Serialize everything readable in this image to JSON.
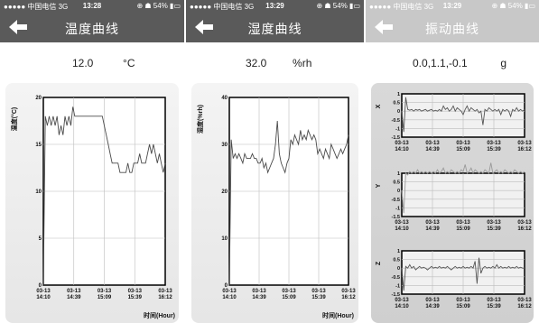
{
  "status_bar": {
    "carrier_signal": "●●●●● 中国电信  3G",
    "battery_temp": "⊕ ☗ 54% ▮▭",
    "battery_hum": "⊕ ☗ 54% ▮▭",
    "battery_vib": "⊕ ☗ 54% ▮▭",
    "time_temp": "13:28",
    "time_hum": "13:29",
    "time_vib": "13:29"
  },
  "screens": {
    "temperature": {
      "title": "温度曲线",
      "value": "12.0",
      "unit": "°C"
    },
    "humidity": {
      "title": "湿度曲线",
      "value": "32.0",
      "unit": "%rh"
    },
    "vibration": {
      "title": "振动曲线",
      "value": "0.0,1.1,-0.1",
      "unit": "g"
    }
  },
  "x_axis": {
    "dates": [
      "03-13",
      "03-13",
      "03-13",
      "03-13",
      "03-13"
    ],
    "times": [
      "14:10",
      "14:39",
      "15:09",
      "15:39",
      "16:12"
    ],
    "label": "时间(Hour)"
  },
  "chart_data": [
    {
      "type": "line",
      "ylabel": "温度(°C)",
      "ylim": [
        0,
        20
      ],
      "yticks": [
        "0",
        "5",
        "10",
        "15",
        "20"
      ],
      "x": [
        "14:10",
        "14:11",
        "14:12",
        "14:14",
        "14:16",
        "14:18",
        "14:20",
        "14:22",
        "14:24",
        "14:26",
        "14:28",
        "14:30",
        "14:32",
        "14:34",
        "14:36",
        "14:38",
        "14:40",
        "14:42",
        "14:44",
        "14:46",
        "14:48",
        "14:50",
        "14:52",
        "14:54",
        "14:56",
        "14:58",
        "15:00",
        "15:02",
        "15:04",
        "15:06",
        "15:08",
        "15:10",
        "15:12",
        "15:14",
        "15:16",
        "15:18",
        "15:20",
        "15:22",
        "15:24",
        "15:26",
        "15:28",
        "15:30",
        "15:32",
        "15:34",
        "15:36",
        "15:38",
        "15:40",
        "15:42",
        "15:44",
        "15:46",
        "15:48",
        "15:50",
        "15:52",
        "15:54",
        "15:56",
        "15:58",
        "16:00",
        "16:02",
        "16:04",
        "16:06",
        "16:08",
        "16:10",
        "16:12"
      ],
      "values": [
        0,
        18,
        17,
        18,
        17,
        18,
        17,
        18,
        16,
        17,
        16,
        18,
        17,
        18,
        17,
        19,
        18,
        18,
        18,
        18,
        18,
        18,
        18,
        18,
        18,
        18,
        18,
        18,
        18,
        18,
        18,
        17,
        16,
        15,
        14,
        13,
        13,
        13,
        13,
        12,
        12,
        12,
        12,
        13,
        12,
        12,
        13,
        13,
        13,
        14,
        13,
        13,
        13,
        14,
        15,
        14,
        15,
        14,
        13,
        14,
        13,
        12,
        13
      ]
    },
    {
      "type": "line",
      "ylabel": "湿度(%rh)",
      "ylim": [
        0,
        40
      ],
      "yticks": [
        "0",
        "10",
        "20",
        "30",
        "40"
      ],
      "x": [
        "14:10",
        "14:11",
        "14:12",
        "14:14",
        "14:16",
        "14:18",
        "14:20",
        "14:22",
        "14:24",
        "14:26",
        "14:28",
        "14:30",
        "14:32",
        "14:34",
        "14:36",
        "14:38",
        "14:40",
        "14:42",
        "14:44",
        "14:46",
        "14:48",
        "14:50",
        "14:52",
        "14:54",
        "14:56",
        "14:58",
        "15:00",
        "15:02",
        "15:04",
        "15:06",
        "15:08",
        "15:10",
        "15:12",
        "15:14",
        "15:16",
        "15:18",
        "15:20",
        "15:22",
        "15:24",
        "15:26",
        "15:28",
        "15:30",
        "15:32",
        "15:34",
        "15:36",
        "15:38",
        "15:40",
        "15:42",
        "15:44",
        "15:46",
        "15:48",
        "15:50",
        "15:52",
        "15:54",
        "15:56",
        "15:58",
        "16:00",
        "16:02",
        "16:04",
        "16:06",
        "16:08",
        "16:10",
        "16:12"
      ],
      "values": [
        0,
        31,
        27,
        28,
        27,
        28,
        27,
        26,
        28,
        27,
        27,
        27,
        28,
        27,
        27,
        26,
        26,
        27,
        25,
        26,
        24,
        25,
        26,
        27,
        30,
        35,
        28,
        26,
        25,
        24,
        26,
        27,
        31,
        30,
        32,
        31,
        30,
        33,
        31,
        32,
        31,
        33,
        32,
        31,
        32,
        31,
        28,
        29,
        28,
        27,
        29,
        28,
        27,
        30,
        29,
        28,
        27,
        28,
        29,
        28,
        29,
        30,
        32
      ]
    },
    {
      "type": "line",
      "name": "X",
      "ylim": [
        -1.5,
        1
      ],
      "yticks": [
        "-1.5",
        "-1",
        "-0.5",
        "0",
        "0.5",
        "1"
      ],
      "values": [
        0,
        -1.2,
        0.8,
        0.1,
        0.05,
        0.1,
        0.0,
        0.1,
        0.05,
        0.1,
        0.0,
        0.05,
        0.1,
        0.0,
        0.05,
        0.1,
        0.0,
        0.05,
        0.0,
        0.1,
        0.0,
        0.3,
        0.1,
        0.2,
        0.0,
        0.1,
        0.3,
        0.0,
        0.2,
        0.1,
        0.0,
        -0.2,
        0.1,
        0.3,
        0.0,
        0.2,
        0.1,
        0.0,
        0.1,
        -0.1,
        0.0,
        -0.8,
        0.1,
        0.0,
        0.2,
        0.1,
        0.0,
        0.1,
        0.0,
        0.1,
        -0.2,
        0.1,
        0.0,
        0.1,
        0.0,
        -0.3,
        0.1,
        0.0,
        0.2,
        0.0,
        0.1,
        0.0,
        0.1
      ]
    },
    {
      "type": "line",
      "name": "Y",
      "ylim": [
        -1.5,
        1
      ],
      "yticks": [
        "-1.5",
        "-1",
        "-0.5",
        "0",
        "0.5",
        "1"
      ],
      "values": [
        0,
        -1.3,
        1.0,
        0.9,
        1.1,
        1.0,
        1.1,
        1.0,
        1.2,
        1.0,
        1.1,
        1.0,
        1.1,
        1.0,
        1.1,
        1.0,
        1.1,
        1.0,
        1.2,
        1.0,
        1.1,
        1.3,
        1.0,
        1.1,
        1.0,
        1.2,
        1.1,
        1.0,
        1.1,
        1.0,
        1.2,
        1.1,
        1.5,
        1.0,
        1.1,
        1.3,
        1.0,
        1.2,
        1.1,
        1.0,
        1.1,
        1.0,
        1.2,
        1.1,
        1.0,
        1.6,
        1.0,
        1.1,
        1.2,
        1.0,
        1.1,
        1.0,
        1.2,
        1.1,
        1.0,
        1.1,
        1.0,
        1.2,
        1.1,
        1.0,
        1.1,
        1.0,
        1.1
      ]
    },
    {
      "type": "line",
      "name": "Z",
      "ylim": [
        -1.5,
        1
      ],
      "yticks": [
        "-1.5",
        "-1",
        "-0.5",
        "0",
        "0.5",
        "1"
      ],
      "values": [
        0,
        -1.3,
        0.1,
        0.0,
        0.2,
        0.0,
        0.1,
        -0.1,
        0.0,
        0.1,
        0.0,
        0.05,
        0.0,
        -0.1,
        0.0,
        0.1,
        0.0,
        0.05,
        0.0,
        0.1,
        0.0,
        0.05,
        0.0,
        0.1,
        0.0,
        -0.1,
        0.0,
        0.1,
        0.0,
        0.05,
        0.0,
        0.1,
        0.0,
        0.05,
        0.0,
        0.1,
        0.0,
        0.4,
        -0.9,
        0.6,
        -0.3,
        0.0,
        0.1,
        0.0,
        0.05,
        0.0,
        0.1,
        0.0,
        0.2,
        0.0,
        0.1,
        0.0,
        0.05,
        0.0,
        0.1,
        0.0,
        0.05,
        0.0,
        0.1,
        0.0,
        0.05,
        0.0,
        0.0
      ]
    }
  ]
}
